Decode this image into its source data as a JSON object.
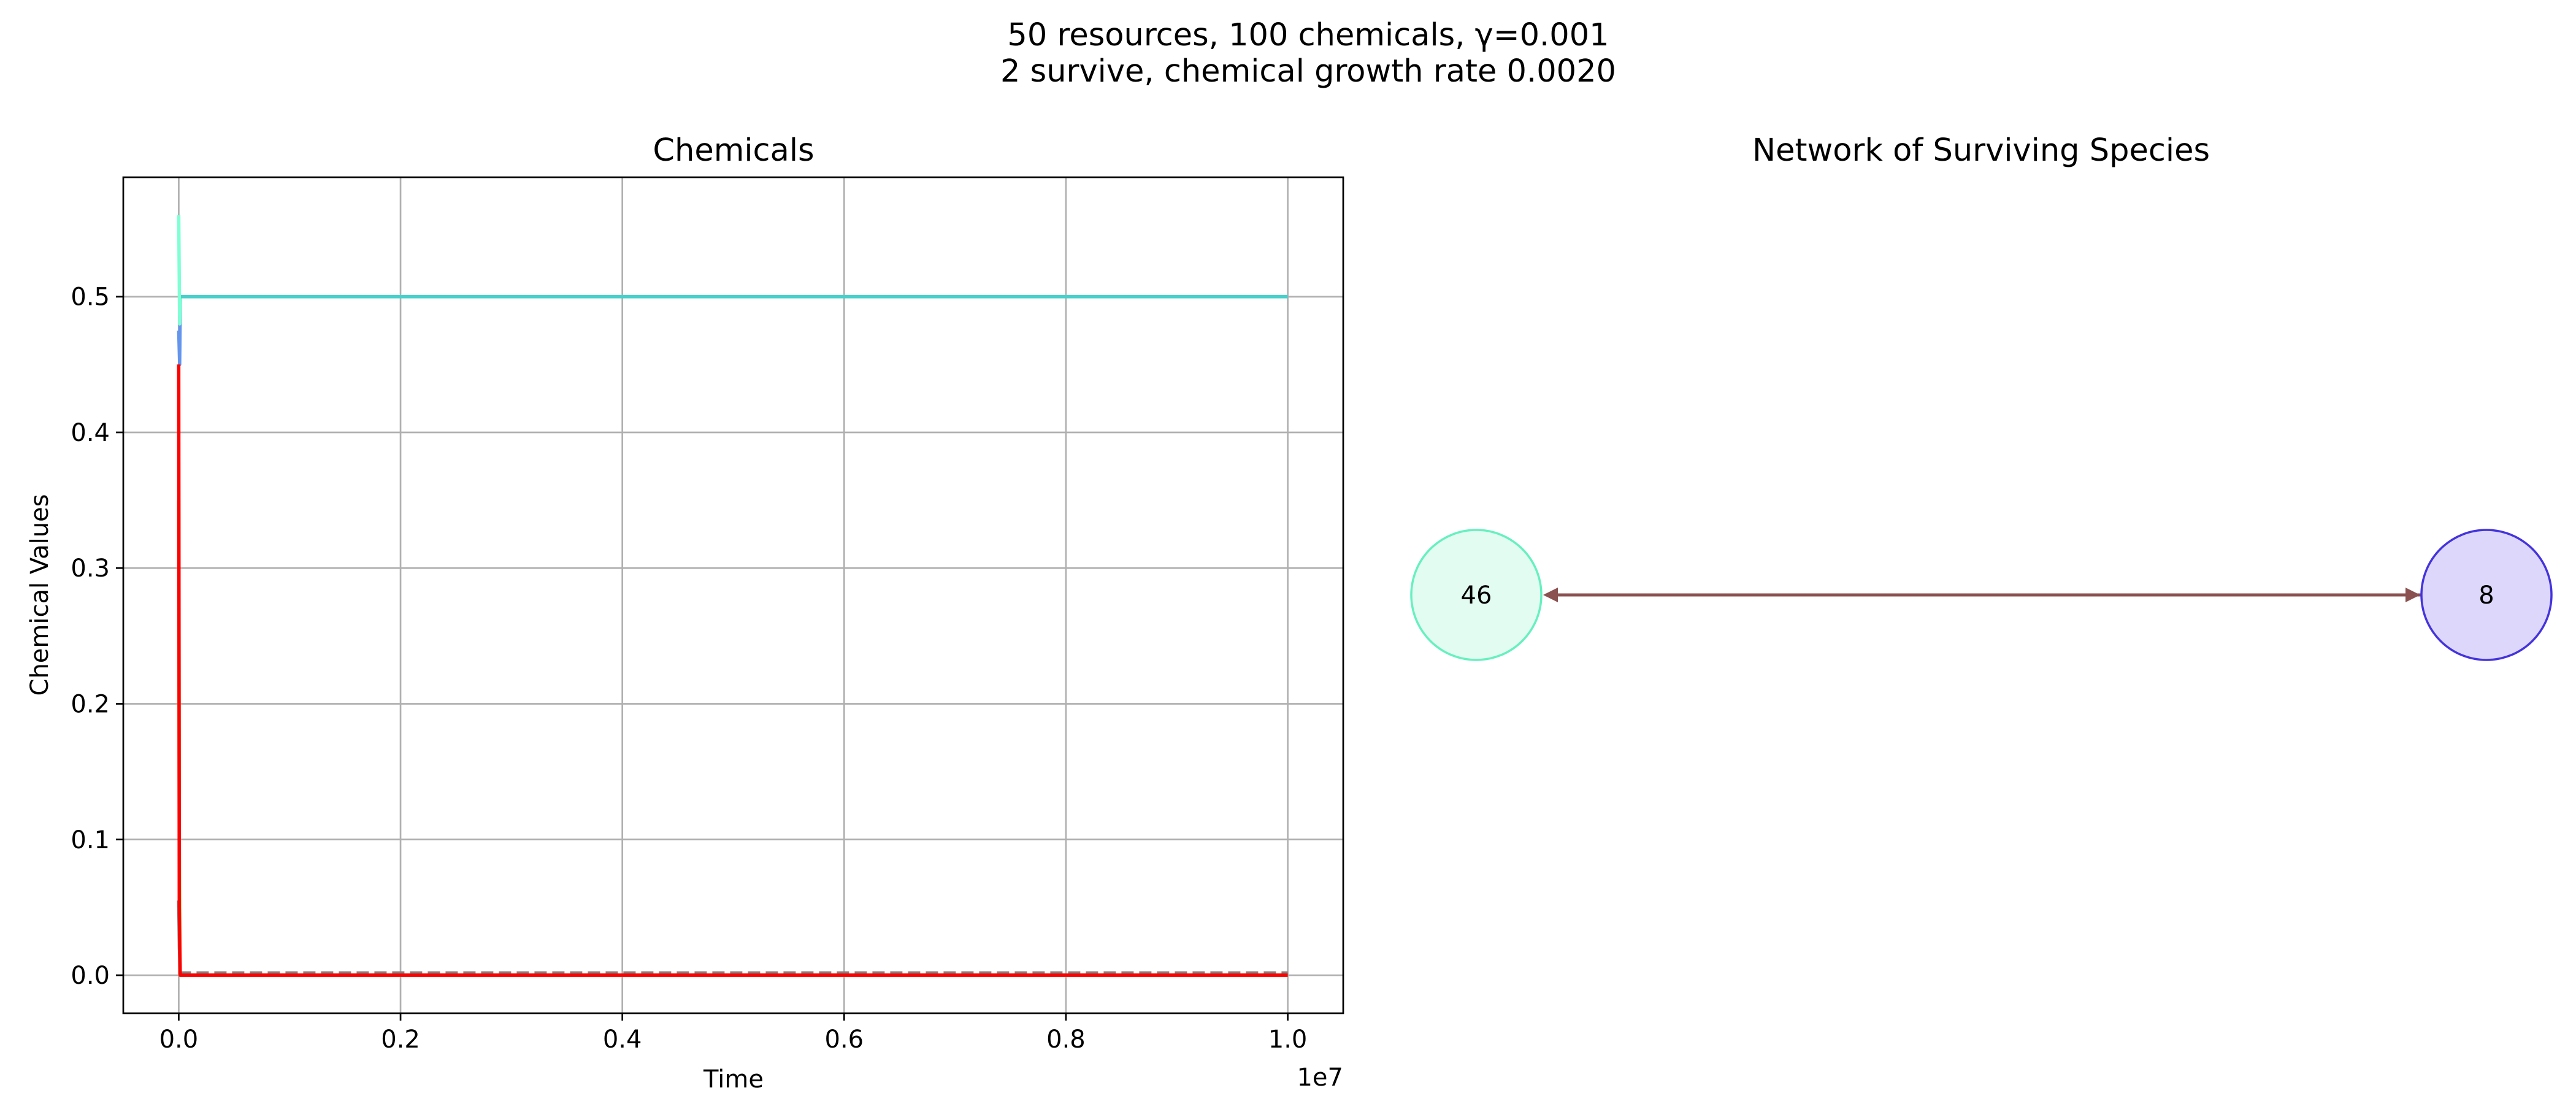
{
  "figure": {
    "suptitle_line1": "50 resources, 100 chemicals, γ=0.001",
    "suptitle_line2": "2 survive, chemical growth rate 0.0020"
  },
  "chart_data": [
    {
      "type": "line",
      "title": "Chemicals",
      "xlabel": "Time",
      "ylabel": "Chemical Values",
      "x_scale_label": "1e7",
      "xlim": [
        -0.05,
        1.05
      ],
      "ylim": [
        -0.028,
        0.588
      ],
      "xticks": [
        0.0,
        0.2,
        0.4,
        0.6,
        0.8,
        1.0
      ],
      "xtick_labels": [
        "0.0",
        "0.2",
        "0.4",
        "0.6",
        "0.8",
        "1.0"
      ],
      "yticks": [
        0.0,
        0.1,
        0.2,
        0.3,
        0.4,
        0.5
      ],
      "ytick_labels": [
        "0.0",
        "0.1",
        "0.2",
        "0.3",
        "0.4",
        "0.5"
      ],
      "grid": true,
      "series": [
        {
          "color": "#6495ed",
          "style": "solid",
          "x": [
            0.0,
            0.0008,
            0.0015,
            1.0
          ],
          "y": [
            0.475,
            0.45,
            0.5,
            0.5
          ]
        },
        {
          "color": "#7fffd4",
          "style": "solid",
          "x": [
            0.0,
            0.0008,
            0.0015,
            1.0
          ],
          "y": [
            0.56,
            0.48,
            0.5,
            0.5
          ]
        },
        {
          "color": "#48d1cc",
          "style": "solid",
          "x": [
            0.002,
            1.0
          ],
          "y": [
            0.5,
            0.5
          ]
        },
        {
          "color": "#9acd32",
          "style": "solid",
          "x": [
            0.0,
            0.0005,
            0.0012,
            1.0
          ],
          "y": [
            0.35,
            0.1,
            0.0,
            0.0
          ]
        },
        {
          "color": "#808080",
          "style": "solid",
          "x": [
            0.0,
            0.0006,
            0.0015,
            1.0
          ],
          "y": [
            0.055,
            0.02,
            0.0,
            0.0
          ]
        },
        {
          "color": "#808080",
          "style": "dashed",
          "x": [
            0.0,
            1.0
          ],
          "y": [
            0.002,
            0.002
          ]
        },
        {
          "color": "#ff0000",
          "style": "solid",
          "x": [
            0.0,
            0.0005,
            0.0013,
            1.0
          ],
          "y": [
            0.45,
            0.05,
            0.0,
            0.0
          ]
        }
      ]
    },
    {
      "type": "network",
      "title": "Network of Surviving Species",
      "nodes": [
        {
          "label": "46",
          "fill": "#e3fcf2",
          "stroke": "#66f0c0"
        },
        {
          "label": "8",
          "fill": "#ddd8fb",
          "stroke": "#4433dd"
        }
      ],
      "edges": [
        {
          "from": "46",
          "to": "8",
          "color": "#8b5050",
          "direction": "both"
        }
      ]
    }
  ]
}
